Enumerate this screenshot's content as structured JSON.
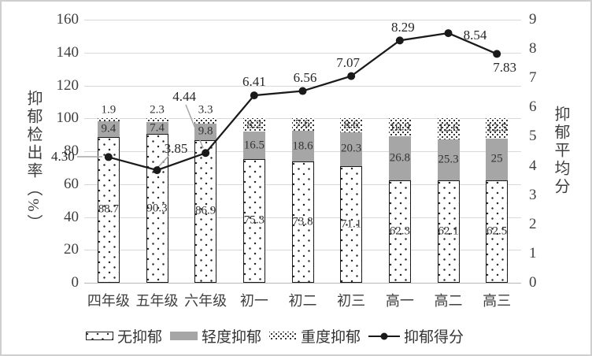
{
  "chart_data": {
    "type": "bar+line",
    "stacked": true,
    "grid": true,
    "categories": [
      "四年级",
      "五年级",
      "六年级",
      "初一",
      "初二",
      "初三",
      "高一",
      "高二",
      "高三"
    ],
    "series": [
      {
        "name": "无抑郁",
        "type": "bar",
        "pattern": "sparse-dots",
        "axis": "left",
        "values": [
          88.7,
          90.3,
          86.9,
          75.3,
          73.8,
          71.1,
          62.3,
          62.1,
          62.5
        ]
      },
      {
        "name": "轻度抑郁",
        "type": "bar",
        "pattern": "solid-gray",
        "color": "#a6a6a6",
        "axis": "left",
        "values": [
          9.4,
          7.4,
          9.8,
          16.5,
          18.6,
          20.3,
          26.8,
          25.3,
          25
        ]
      },
      {
        "name": "重度抑郁",
        "type": "bar",
        "pattern": "dense-dots",
        "axis": "left",
        "values": [
          1.9,
          2.3,
          3.3,
          8.2,
          7.6,
          8.6,
          10.9,
          12.6,
          12.5
        ]
      },
      {
        "name": "抑郁得分",
        "type": "line",
        "color": "#1a1a1a",
        "marker": "circle",
        "axis": "right",
        "values": [
          4.3,
          3.85,
          4.44,
          6.41,
          6.56,
          7.07,
          8.29,
          8.54,
          7.83
        ],
        "labels": [
          "4.30",
          "3.85",
          "4.44",
          "6.41",
          "6.56",
          "7.07",
          "8.29",
          "8.54",
          "7.83"
        ]
      }
    ],
    "left_axis": {
      "label": "抑郁检出率（%）",
      "min": 0,
      "max": 160,
      "step": 20
    },
    "right_axis": {
      "label": "抑郁平均分",
      "min": 0,
      "max": 9,
      "step": 1
    },
    "legend": {
      "position": "bottom",
      "entries": [
        "无抑郁",
        "轻度抑郁",
        "重度抑郁",
        "抑郁得分"
      ]
    }
  },
  "colors": {
    "grid": "#d9d9d9",
    "axis_line": "#b7b7b7",
    "bar_gray": "#a6a6a6",
    "line": "#1a1a1a",
    "leader": "#a6a6a6",
    "text": "#3f3f3f",
    "frame_border": "#cfcfcf"
  }
}
